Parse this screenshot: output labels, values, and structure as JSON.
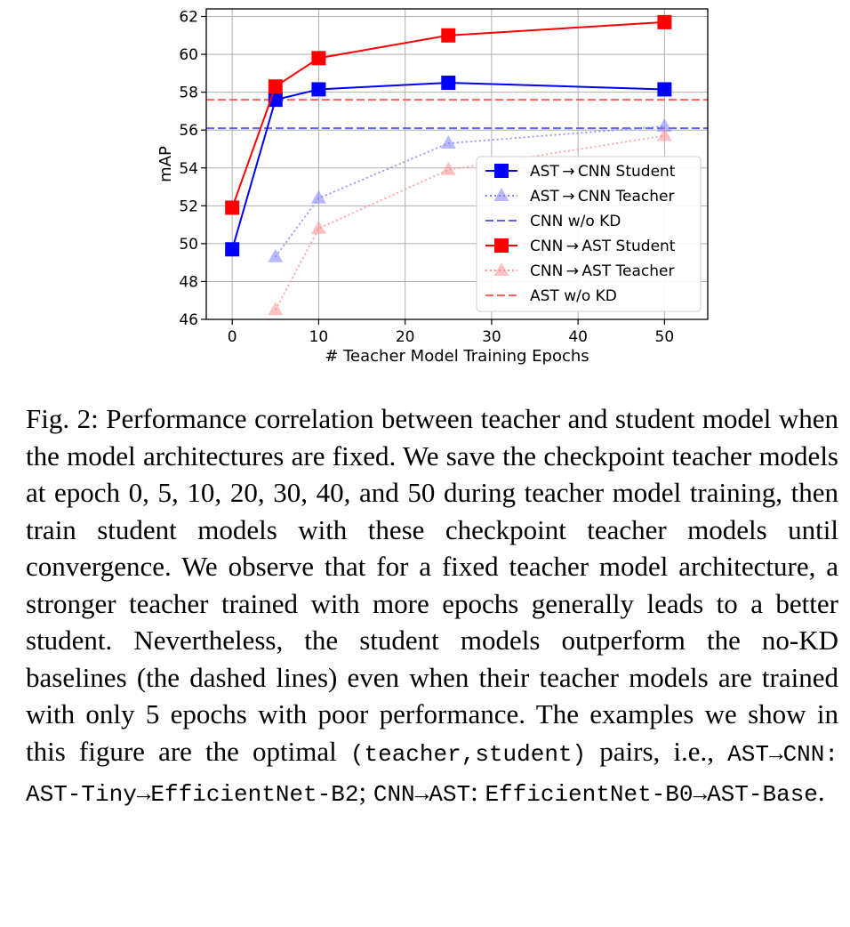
{
  "chart_data": {
    "type": "line",
    "xlabel": "# Teacher Model Training Epochs",
    "ylabel": "mAP",
    "xlim": [
      -3,
      55
    ],
    "ylim": [
      46,
      62.4
    ],
    "xticks": [
      "0",
      "10",
      "20",
      "30",
      "40",
      "50"
    ],
    "yticks": [
      "46",
      "48",
      "50",
      "52",
      "54",
      "56",
      "58",
      "60",
      "62"
    ],
    "grid": true,
    "legend_position": "lower-right",
    "series": [
      {
        "name": "AST → CNN Student",
        "x": [
          0,
          5,
          10,
          25,
          50
        ],
        "y": [
          49.7,
          57.6,
          58.15,
          58.5,
          58.15
        ],
        "color": "#0000ff",
        "marker": "square",
        "style": "solid"
      },
      {
        "name": "AST → CNN Teacher",
        "x": [
          5,
          10,
          25,
          50
        ],
        "y": [
          49.3,
          52.4,
          55.3,
          56.2
        ],
        "color": "#8080ff",
        "marker": "triangle",
        "style": "dotted"
      },
      {
        "name": "CNN w/o KD",
        "y_const": 56.1,
        "color": "#6060ff",
        "marker": "none",
        "style": "dashed"
      },
      {
        "name": "CNN → AST Student",
        "x": [
          0,
          5,
          10,
          25,
          50
        ],
        "y": [
          51.9,
          58.3,
          59.8,
          61.0,
          61.7
        ],
        "color": "#ff0000",
        "marker": "square",
        "style": "solid"
      },
      {
        "name": "CNN → AST Teacher",
        "x": [
          5,
          10,
          25,
          50
        ],
        "y": [
          46.5,
          50.8,
          53.9,
          55.7
        ],
        "color": "#ff9090",
        "marker": "triangle",
        "style": "dotted"
      },
      {
        "name": "AST w/o KD",
        "y_const": 57.6,
        "color": "#ff6060",
        "marker": "none",
        "style": "dashed"
      }
    ]
  },
  "caption": {
    "t1": "Fig. 2: Performance correlation between teacher and student model when the model architectures are fixed. We save the checkpoint teacher models at epoch 0, 5, 10, 20, 30, 40, and 50 during teacher model training, then train student models with these checkpoint teacher models until convergence. We observe that for a fixed teacher model architecture, a stronger teacher trained with more epochs generally leads to a better student. Nevertheless, the student models outperform the no-KD baselines (the dashed lines) even when their teacher models are trained with only 5 epochs with poor performance. The examples we show in this figure are the optimal ",
    "m1": "(teacher,student)",
    "t2": " pairs, i.e., ",
    "m2": "AST→CNN:",
    "t3": " ",
    "m3": "AST-Tiny→EfficientNet-B2",
    "t4": "; ",
    "m4": "CNN→AST",
    "t5": ": ",
    "m5": "EfficientNet-B0→AST-Base",
    "t6": "."
  }
}
